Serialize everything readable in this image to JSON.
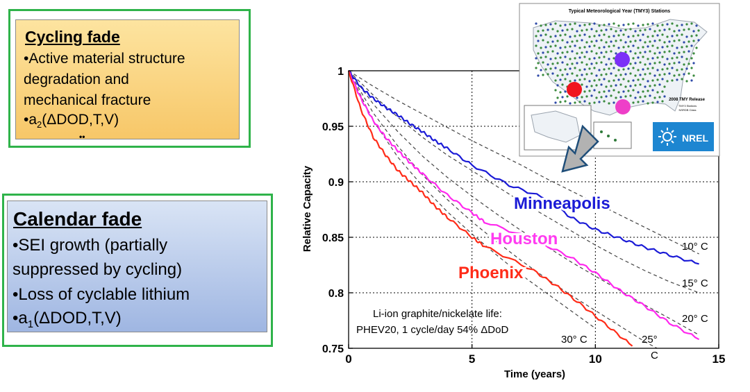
{
  "cycling_box": {
    "title": "Cycling fade",
    "lines": [
      "•Active material structure",
      "degradation and",
      "mechanical fracture"
    ],
    "formula_prefix": "•a",
    "formula_sub": "2",
    "formula_suffix": "(ΔDOD,T,V)",
    "dots": "••",
    "colors": {
      "fill_top": "#fde4a0",
      "fill_bottom": "#f7c768",
      "outline": "#2fb34a"
    }
  },
  "calendar_box": {
    "title": "Calendar fade",
    "lines": [
      "•SEI growth (partially",
      "suppressed by cycling)",
      "•Loss of cyclable lithium"
    ],
    "formula_prefix": "•a",
    "formula_sub": "1",
    "formula_suffix": "(ΔDOD,T,V)",
    "colors": {
      "fill_top": "#d9e4f5",
      "fill_bottom": "#9fb6e2",
      "outline": "#2fb34a"
    }
  },
  "map_inset": {
    "title": "Typical Meteorological Year (TMY3) Stations",
    "legend_title": "2008 TMY Release",
    "legend_sub1": "TMY3 Stations",
    "legend_sub2": "NSRDB Class",
    "logo": "NREL",
    "markers": [
      {
        "city": "Minneapolis",
        "color": "#7b2ff7"
      },
      {
        "city": "Phoenix",
        "color": "#f0141e"
      },
      {
        "city": "Houston",
        "color": "#ee3fc8"
      }
    ],
    "icon": "down-left-arrow-icon"
  },
  "chart_data": {
    "type": "line",
    "xlabel": "Time (years)",
    "ylabel": "Relative Capacity",
    "xlim": [
      0,
      15
    ],
    "ylim": [
      0.75,
      1.0
    ],
    "xticks": [
      0,
      5,
      10,
      15
    ],
    "yticks": [
      0.75,
      0.8,
      0.85,
      0.9,
      0.95,
      1
    ],
    "ytick_labels": [
      "0.75",
      "0.8",
      "0.85",
      "0.9",
      "0.95",
      "1"
    ],
    "grid": "dashed, at x=5,10 and every y tick",
    "series": [
      {
        "name": "Minneapolis",
        "color": "#1a1ad6",
        "x": [
          0,
          0.5,
          1,
          1.5,
          2,
          2.5,
          3,
          3.5,
          4,
          5,
          6.5,
          8,
          9,
          10,
          11,
          12,
          13,
          14.2
        ],
        "y": [
          1.0,
          0.985,
          0.975,
          0.967,
          0.96,
          0.952,
          0.945,
          0.937,
          0.93,
          0.915,
          0.897,
          0.885,
          0.868,
          0.857,
          0.849,
          0.841,
          0.834,
          0.826
        ]
      },
      {
        "name": "Houston",
        "color": "#ff27ee",
        "x": [
          0,
          0.5,
          1,
          1.5,
          2,
          2.5,
          3,
          4,
          5,
          5.5,
          7.5,
          9,
          10,
          11,
          12,
          13,
          14.2
        ],
        "y": [
          1.0,
          0.975,
          0.955,
          0.94,
          0.928,
          0.917,
          0.907,
          0.888,
          0.872,
          0.864,
          0.848,
          0.832,
          0.818,
          0.802,
          0.788,
          0.773,
          0.758
        ]
      },
      {
        "name": "Phoenix",
        "color": "#ff2b18",
        "x": [
          0,
          0.5,
          1,
          1.5,
          2,
          2.5,
          3,
          3.5,
          4,
          5,
          5.5,
          7.5,
          8.5,
          9.5,
          10.5,
          11.5
        ],
        "y": [
          1.0,
          0.965,
          0.94,
          0.924,
          0.91,
          0.9,
          0.89,
          0.878,
          0.868,
          0.85,
          0.842,
          0.82,
          0.805,
          0.788,
          0.77,
          0.752
        ]
      }
    ],
    "reference_curves": [
      {
        "label": "10° C",
        "x": [
          0,
          1,
          2,
          3,
          4,
          5,
          6,
          7,
          8,
          9,
          10,
          11,
          12,
          13,
          14.2
        ],
        "y": [
          1.0,
          0.986,
          0.973,
          0.961,
          0.949,
          0.937,
          0.926,
          0.915,
          0.903,
          0.892,
          0.881,
          0.87,
          0.859,
          0.848,
          0.835
        ]
      },
      {
        "label": "15° C",
        "x": [
          0,
          1,
          2,
          3,
          4,
          5,
          6,
          7,
          8,
          9,
          10,
          11,
          12,
          13,
          14.2
        ],
        "y": [
          1.0,
          0.978,
          0.958,
          0.94,
          0.924,
          0.91,
          0.896,
          0.882,
          0.869,
          0.856,
          0.843,
          0.831,
          0.82,
          0.81,
          0.8
        ]
      },
      {
        "label": "20° C",
        "x": [
          0,
          1,
          2,
          3,
          4,
          5,
          6,
          7,
          8,
          9,
          10,
          11,
          12,
          13,
          14.2
        ],
        "y": [
          1.0,
          0.97,
          0.945,
          0.923,
          0.904,
          0.887,
          0.871,
          0.856,
          0.842,
          0.828,
          0.815,
          0.802,
          0.789,
          0.777,
          0.762
        ]
      },
      {
        "label": "25° C",
        "x": [
          0,
          1,
          2,
          3,
          4,
          5,
          6,
          7,
          8,
          9,
          10,
          11,
          12,
          12.5
        ],
        "y": [
          1.0,
          0.962,
          0.932,
          0.906,
          0.884,
          0.864,
          0.846,
          0.829,
          0.813,
          0.798,
          0.784,
          0.77,
          0.756,
          0.75
        ]
      },
      {
        "label": "30° C",
        "x": [
          0,
          1,
          2,
          3,
          4,
          5,
          6,
          7,
          8,
          9,
          10
        ],
        "y": [
          1.0,
          0.955,
          0.922,
          0.896,
          0.873,
          0.853,
          0.834,
          0.816,
          0.8,
          0.784,
          0.768
        ]
      }
    ],
    "annotations": {
      "minneapolis": "Minneapolis",
      "houston": "Houston",
      "phoenix": "Phoenix",
      "life_line1": "Li-ion graphite/nickelate life:",
      "life_line2": "PHEV20, 1 cycle/day 54% ΔDoD",
      "t10": "10° C",
      "t15": "15° C",
      "t20": "20° C",
      "t25a": "25°",
      "t25b": "C",
      "t30": "30° C"
    }
  }
}
